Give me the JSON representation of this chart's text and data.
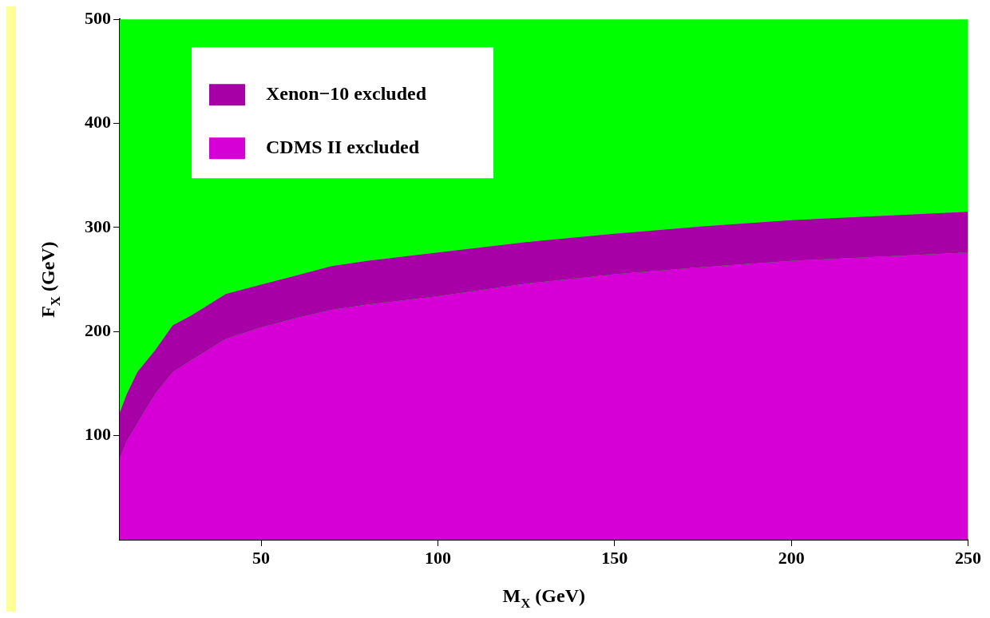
{
  "chart_data": {
    "type": "area",
    "xlabel": "M$_{X}$ (GeV)",
    "ylabel": "F$_{X}$ (GeV)",
    "xlim": [
      10,
      250
    ],
    "xticks": [
      50,
      100,
      150,
      200,
      250
    ],
    "ylim": [
      0,
      500
    ],
    "yticks": [
      100,
      200,
      300,
      400,
      500
    ],
    "legend": "top left",
    "grid": false,
    "bands": [
      {
        "axis": "y",
        "from": 0,
        "to": 500,
        "color": "#00ff00"
      }
    ],
    "series": [
      {
        "name": "Xenon−10 excluded",
        "color": "#a600a6",
        "x": [
          10,
          12,
          15,
          20,
          25,
          30,
          40,
          50,
          60,
          70,
          80,
          90,
          100,
          125,
          150,
          175,
          200,
          225,
          250
        ],
        "values": [
          122,
          140,
          161,
          182,
          206,
          215,
          236,
          245,
          254,
          263,
          268,
          272,
          276,
          286,
          294,
          301,
          307,
          311,
          315
        ]
      },
      {
        "name": "CDMS II excluded",
        "color": "#d600d6",
        "x": [
          10,
          12,
          15,
          20,
          25,
          30,
          40,
          50,
          60,
          70,
          80,
          90,
          100,
          125,
          150,
          175,
          200,
          225,
          250
        ],
        "values": [
          78,
          95,
          112,
          140,
          161,
          172,
          193,
          204,
          213,
          221,
          226,
          230,
          234,
          246,
          255,
          262,
          268,
          272,
          276
        ]
      }
    ]
  }
}
